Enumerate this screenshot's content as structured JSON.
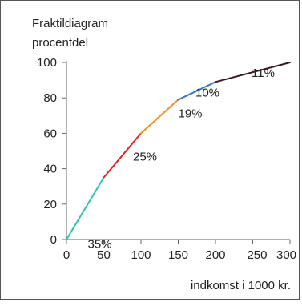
{
  "chart_data": {
    "type": "line",
    "title": "Fraktildiagram",
    "ylabel": "procentdel",
    "xlabel": "indkomst i 1000 kr.",
    "xlim": [
      0,
      300
    ],
    "ylim": [
      0,
      100
    ],
    "xticks": [
      0,
      50,
      100,
      150,
      200,
      250,
      300
    ],
    "xtick_labels": [
      "0",
      "50",
      "100",
      "150",
      "200",
      "250",
      "300"
    ],
    "yticks": [
      0,
      20,
      40,
      60,
      80,
      100
    ],
    "ytick_labels": [
      "0",
      "20",
      "40",
      "60",
      "80",
      "100"
    ],
    "grid": false,
    "segments": [
      {
        "x": [
          0,
          50
        ],
        "y": [
          0,
          35
        ],
        "label": "35%",
        "color": "#2ec4b0"
      },
      {
        "x": [
          50,
          100
        ],
        "y": [
          35,
          60
        ],
        "label": "25%",
        "color": "#e02020"
      },
      {
        "x": [
          100,
          150
        ],
        "y": [
          60,
          79
        ],
        "label": "19%",
        "color": "#f09020"
      },
      {
        "x": [
          150,
          200
        ],
        "y": [
          79,
          89
        ],
        "label": "10%",
        "color": "#3a78b8"
      },
      {
        "x": [
          200,
          300
        ],
        "y": [
          89,
          100
        ],
        "label": "11%",
        "color": "#3a1828"
      }
    ]
  }
}
